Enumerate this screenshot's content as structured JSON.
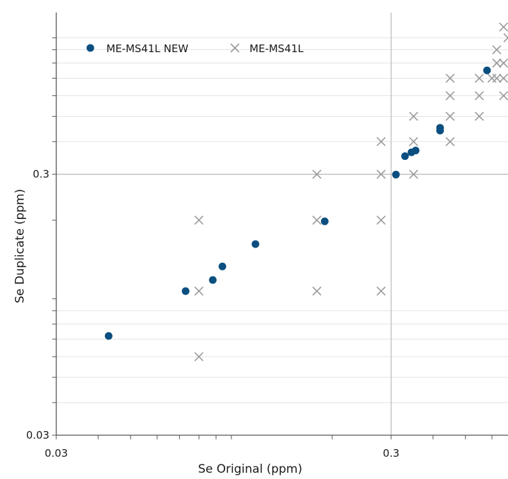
{
  "chart_data": {
    "type": "scatter",
    "xlabel": "Se Original (ppm)",
    "ylabel": "Se Duplicate (ppm)",
    "xscale": "log",
    "yscale": "log",
    "xlim": [
      0.03,
      0.67
    ],
    "ylim": [
      0.03,
      1.25
    ],
    "x_ticks": [
      {
        "value": 0.03,
        "label": "0.03"
      },
      {
        "value": 0.3,
        "label": "0.3"
      }
    ],
    "y_ticks": [
      {
        "value": 0.03,
        "label": "0.03"
      },
      {
        "value": 0.3,
        "label": "0.3"
      }
    ],
    "legend_position": "top-left",
    "series": [
      {
        "name": "ME-MS41L NEW",
        "marker": "circle",
        "color": "#0b4f80",
        "points": [
          [
            0.043,
            0.072
          ],
          [
            0.073,
            0.107
          ],
          [
            0.088,
            0.118
          ],
          [
            0.094,
            0.133
          ],
          [
            0.118,
            0.162
          ],
          [
            0.19,
            0.198
          ],
          [
            0.31,
            0.299
          ],
          [
            0.33,
            0.352
          ],
          [
            0.345,
            0.364
          ],
          [
            0.355,
            0.37
          ],
          [
            0.42,
            0.441
          ],
          [
            0.42,
            0.452
          ],
          [
            0.58,
            0.75
          ]
        ]
      },
      {
        "name": "ME-MS41L",
        "marker": "x",
        "color": "#9a9a9a",
        "points": [
          [
            0.08,
            0.06
          ],
          [
            0.08,
            0.107
          ],
          [
            0.08,
            0.2
          ],
          [
            0.18,
            0.107
          ],
          [
            0.18,
            0.2
          ],
          [
            0.18,
            0.3
          ],
          [
            0.28,
            0.107
          ],
          [
            0.28,
            0.2
          ],
          [
            0.28,
            0.3
          ],
          [
            0.28,
            0.4
          ],
          [
            0.35,
            0.3
          ],
          [
            0.35,
            0.4
          ],
          [
            0.35,
            0.5
          ],
          [
            0.45,
            0.4
          ],
          [
            0.45,
            0.5
          ],
          [
            0.45,
            0.6
          ],
          [
            0.45,
            0.7
          ],
          [
            0.55,
            0.5
          ],
          [
            0.55,
            0.6
          ],
          [
            0.55,
            0.7
          ],
          [
            0.6,
            0.7
          ],
          [
            0.62,
            0.7
          ],
          [
            0.62,
            0.8
          ],
          [
            0.62,
            0.9
          ],
          [
            0.65,
            0.6
          ],
          [
            0.65,
            0.7
          ],
          [
            0.65,
            0.8
          ],
          [
            0.65,
            1.1
          ],
          [
            0.67,
            1.0
          ]
        ]
      }
    ]
  }
}
